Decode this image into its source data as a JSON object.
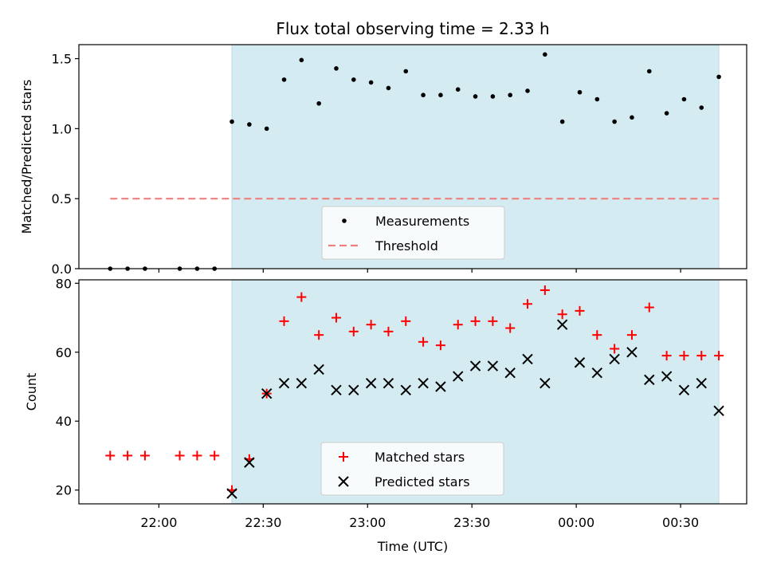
{
  "chart_data": [
    {
      "type": "scatter",
      "title": "Flux total observing time = 2.33 h",
      "xlabel": "",
      "ylabel": "Matched/Predicted stars",
      "ylim": [
        0,
        1.6
      ],
      "yticks": [
        "0.0",
        "0.5",
        "1.0",
        "1.5"
      ],
      "ytick_values": [
        0,
        0.5,
        1.0,
        1.5
      ],
      "xlim": [
        "21:37",
        "00:49"
      ],
      "shaded_region": {
        "from": "22:21",
        "to": "00:41",
        "color": "#d4ebf1"
      },
      "legend_position": "lower-center",
      "series": [
        {
          "name": "Measurements",
          "marker": "dot",
          "color": "#000000",
          "x": [
            "21:46",
            "21:51",
            "21:56",
            "22:06",
            "22:11",
            "22:16",
            "22:21",
            "22:26",
            "22:31",
            "22:36",
            "22:41",
            "22:46",
            "22:51",
            "22:56",
            "23:01",
            "23:06",
            "23:11",
            "23:16",
            "23:21",
            "23:26",
            "23:31",
            "23:36",
            "23:41",
            "23:46",
            "23:51",
            "23:56",
            "00:01",
            "00:06",
            "00:11",
            "00:16",
            "00:21",
            "00:26",
            "00:31",
            "00:36",
            "00:41"
          ],
          "y": [
            0,
            0,
            0,
            0,
            0,
            0,
            1.05,
            1.03,
            1.0,
            1.35,
            1.49,
            1.18,
            1.43,
            1.35,
            1.33,
            1.29,
            1.41,
            1.24,
            1.24,
            1.28,
            1.23,
            1.23,
            1.24,
            1.27,
            1.53,
            1.05,
            1.26,
            1.21,
            1.05,
            1.08,
            1.41,
            1.11,
            1.21,
            1.15,
            1.37
          ]
        },
        {
          "name": "Threshold",
          "marker": "dashed-line",
          "color": "#f08080",
          "x": [
            "21:46",
            "00:41"
          ],
          "y": [
            0.5,
            0.5
          ]
        }
      ]
    },
    {
      "type": "scatter",
      "title": "",
      "xlabel": "Time (UTC)",
      "ylabel": "Count",
      "ylim": [
        16,
        81
      ],
      "yticks": [
        "20",
        "40",
        "60",
        "80"
      ],
      "ytick_values": [
        20,
        40,
        60,
        80
      ],
      "xlim": [
        "21:37",
        "00:49"
      ],
      "xticks": [
        "22:00",
        "22:30",
        "23:00",
        "23:30",
        "00:00",
        "00:30"
      ],
      "shaded_region": {
        "from": "22:21",
        "to": "00:41",
        "color": "#d4ebf1"
      },
      "legend_position": "lower-center",
      "series": [
        {
          "name": "Matched stars",
          "marker": "plus",
          "color": "#ff0000",
          "x": [
            "21:46",
            "21:51",
            "21:56",
            "22:06",
            "22:11",
            "22:16",
            "22:21",
            "22:26",
            "22:31",
            "22:36",
            "22:41",
            "22:46",
            "22:51",
            "22:56",
            "23:01",
            "23:06",
            "23:11",
            "23:16",
            "23:21",
            "23:26",
            "23:31",
            "23:36",
            "23:41",
            "23:46",
            "23:51",
            "23:56",
            "00:01",
            "00:06",
            "00:11",
            "00:16",
            "00:21",
            "00:26",
            "00:31",
            "00:36",
            "00:41"
          ],
          "y": [
            30,
            30,
            30,
            30,
            30,
            30,
            20,
            29,
            48,
            69,
            76,
            65,
            70,
            66,
            68,
            66,
            69,
            63,
            62,
            68,
            69,
            69,
            67,
            74,
            78,
            71,
            72,
            65,
            61,
            65,
            73,
            59,
            59,
            59,
            59
          ]
        },
        {
          "name": "Predicted stars",
          "marker": "x",
          "color": "#000000",
          "x": [
            "22:21",
            "22:26",
            "22:31",
            "22:36",
            "22:41",
            "22:46",
            "22:51",
            "22:56",
            "23:01",
            "23:06",
            "23:11",
            "23:16",
            "23:21",
            "23:26",
            "23:31",
            "23:36",
            "23:41",
            "23:46",
            "23:51",
            "23:56",
            "00:01",
            "00:06",
            "00:11",
            "00:16",
            "00:21",
            "00:26",
            "00:31",
            "00:36",
            "00:41"
          ],
          "y": [
            19,
            28,
            48,
            51,
            51,
            55,
            49,
            49,
            51,
            51,
            49,
            51,
            50,
            53,
            56,
            56,
            54,
            58,
            51,
            68,
            57,
            54,
            58,
            60,
            52,
            53,
            49,
            51,
            43
          ]
        }
      ]
    }
  ]
}
